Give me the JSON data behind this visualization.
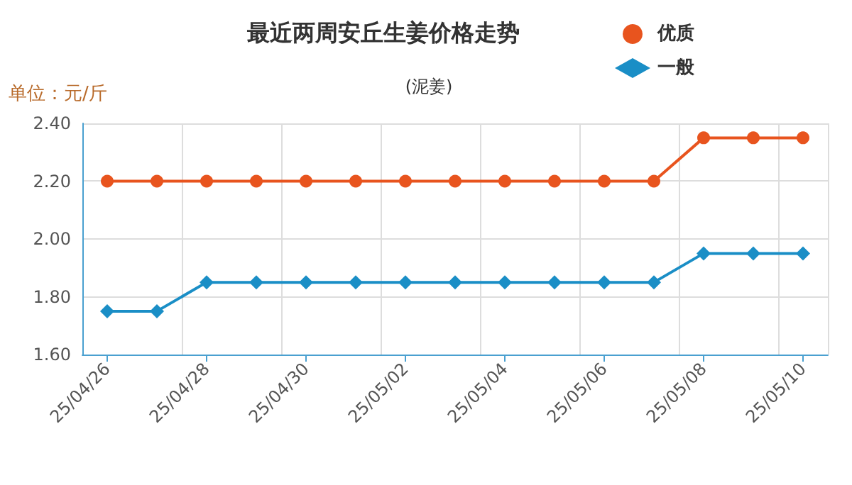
{
  "chart_data": {
    "type": "line",
    "title": "最近两周安丘生姜价格走势",
    "subtitle": "(泥姜)",
    "ylabel": "单位：元/斤",
    "categories": [
      "25/04/26",
      null,
      "25/04/28",
      null,
      "25/04/30",
      null,
      "25/05/02",
      null,
      "25/05/04",
      null,
      "25/05/06",
      null,
      "25/05/08",
      null,
      "25/05/10"
    ],
    "series": [
      {
        "name": "优质",
        "color": "#e8541e",
        "marker": "circle",
        "values": [
          2.2,
          2.2,
          2.2,
          2.2,
          2.2,
          2.2,
          2.2,
          2.2,
          2.2,
          2.2,
          2.2,
          2.2,
          2.35,
          2.35,
          2.35
        ]
      },
      {
        "name": "一般",
        "color": "#1a8ec6",
        "marker": "diamond",
        "values": [
          1.75,
          1.75,
          1.85,
          1.85,
          1.85,
          1.85,
          1.85,
          1.85,
          1.85,
          1.85,
          1.85,
          1.85,
          1.95,
          1.95,
          1.95
        ]
      }
    ],
    "ylim": [
      1.6,
      2.4
    ],
    "yticks": [
      {
        "value": 1.6,
        "label": "1.60"
      },
      {
        "value": 1.8,
        "label": "1.80"
      },
      {
        "value": 2.0,
        "label": "2.00"
      },
      {
        "value": 2.2,
        "label": "2.20"
      },
      {
        "value": 2.4,
        "label": "2.40"
      }
    ],
    "grid": true,
    "legend": "top right"
  }
}
